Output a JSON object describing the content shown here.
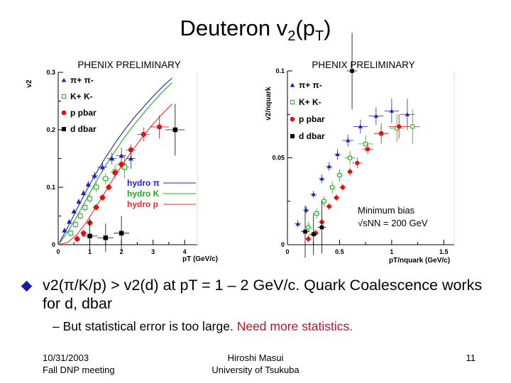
{
  "slide": {
    "title_main": "Deuteron v",
    "title_sub2": "2",
    "title_mid": "(p",
    "title_subT": "T",
    "title_end": ")",
    "bullet_text": "v2(π/K/p) > v2(d) at pT = 1 – 2 GeV/c. Quark Coalescence works for d, dbar",
    "sub_text_black": "– But statistical error is too large.",
    "sub_text_red": "Need more statistics.",
    "footer_left_line1": "10/31/2003",
    "footer_left_line2": "Fall DNP meeting",
    "footer_center_line1": "Hiroshi Masui",
    "footer_center_line2": "University of Tsukuba",
    "footer_right": "11"
  },
  "chart_data": [
    {
      "type": "scatter",
      "title": "PHENIX PRELIMINARY",
      "xlabel": "pT (GeV/c)",
      "ylabel": "v2",
      "xlim": [
        0,
        4.4
      ],
      "ylim": [
        0,
        0.3
      ],
      "xticks": [
        "0",
        "1",
        "2",
        "3",
        "4"
      ],
      "yticks": [
        "0",
        "0.1",
        "0.2",
        "0.3"
      ],
      "legend": [
        "π+ π-",
        "K+ K-",
        "p pbar",
        "d dbar"
      ],
      "colors": {
        "pi": "#1f1fc8",
        "k": "#1fa81f",
        "p": "#e01010",
        "d": "#000000"
      },
      "series": [
        {
          "name": "π+ π-",
          "marker": "triangle",
          "x": [
            0.2,
            0.35,
            0.5,
            0.65,
            0.8,
            0.95,
            1.15,
            1.4,
            1.7,
            2.0,
            2.3
          ],
          "y": [
            0.025,
            0.04,
            0.058,
            0.075,
            0.09,
            0.105,
            0.12,
            0.135,
            0.15,
            0.155,
            0.15
          ],
          "xerr": [
            0.05,
            0.05,
            0.05,
            0.05,
            0.05,
            0.05,
            0.1,
            0.15,
            0.15,
            0.15,
            0.15
          ],
          "yerr": [
            0.004,
            0.004,
            0.004,
            0.005,
            0.005,
            0.006,
            0.007,
            0.008,
            0.01,
            0.014,
            0.018
          ]
        },
        {
          "name": "K+ K-",
          "marker": "square-open",
          "x": [
            0.4,
            0.55,
            0.7,
            0.85,
            1.0,
            1.2,
            1.5,
            1.8,
            2.1
          ],
          "y": [
            0.02,
            0.035,
            0.05,
            0.065,
            0.08,
            0.1,
            0.115,
            0.127,
            0.135
          ],
          "xerr": [
            0.05,
            0.05,
            0.05,
            0.05,
            0.05,
            0.1,
            0.15,
            0.15,
            0.15
          ],
          "yerr": [
            0.006,
            0.006,
            0.006,
            0.007,
            0.007,
            0.008,
            0.01,
            0.012,
            0.02
          ]
        },
        {
          "name": "p pbar",
          "marker": "circle",
          "x": [
            0.6,
            0.8,
            1.0,
            1.2,
            1.4,
            1.6,
            1.8,
            2.0,
            2.3,
            2.7,
            3.2
          ],
          "y": [
            0.01,
            0.02,
            0.038,
            0.065,
            0.082,
            0.1,
            0.125,
            0.14,
            0.165,
            0.192,
            0.205
          ],
          "xerr": [
            0.1,
            0.1,
            0.1,
            0.1,
            0.1,
            0.1,
            0.1,
            0.15,
            0.15,
            0.2,
            0.3
          ],
          "yerr": [
            0.006,
            0.006,
            0.006,
            0.006,
            0.006,
            0.006,
            0.007,
            0.008,
            0.009,
            0.012,
            0.02
          ]
        },
        {
          "name": "d dbar",
          "marker": "square",
          "x": [
            1.0,
            1.5,
            2.0,
            3.7
          ],
          "y": [
            0.015,
            0.012,
            0.02,
            0.2
          ],
          "xerr": [
            0.25,
            0.25,
            0.25,
            0.3
          ],
          "yerr": [
            0.03,
            0.025,
            0.03,
            0.045
          ]
        }
      ],
      "curves": [
        {
          "name": "hydro π",
          "color": "#1f1fc8",
          "x": [
            0,
            0.3,
            0.6,
            0.9,
            1.2,
            1.5,
            1.8,
            2.1,
            2.4,
            2.7,
            3.0,
            3.3,
            3.6
          ],
          "y": [
            0,
            0.03,
            0.063,
            0.095,
            0.125,
            0.152,
            0.177,
            0.2,
            0.221,
            0.24,
            0.258,
            0.275,
            0.29
          ]
        },
        {
          "name": "hydro K",
          "color": "#1fa81f",
          "x": [
            0,
            0.3,
            0.6,
            0.9,
            1.2,
            1.5,
            1.8,
            2.1,
            2.4,
            2.7,
            3.0,
            3.3,
            3.6
          ],
          "y": [
            0,
            0.022,
            0.05,
            0.08,
            0.11,
            0.138,
            0.163,
            0.187,
            0.209,
            0.229,
            0.248,
            0.266,
            0.282
          ]
        },
        {
          "name": "hydro p",
          "color": "#e03030",
          "x": [
            0,
            0.3,
            0.6,
            0.9,
            1.2,
            1.5,
            1.8,
            2.1,
            2.4,
            2.7,
            3.0,
            3.3,
            3.6
          ],
          "y": [
            0,
            0.004,
            0.018,
            0.04,
            0.066,
            0.093,
            0.12,
            0.145,
            0.168,
            0.19,
            0.21,
            0.228,
            0.245
          ]
        }
      ]
    },
    {
      "type": "scatter",
      "title": "PHENIX PRELIMINARY",
      "xlabel": "pT/nquark (GeV/c)",
      "ylabel": "v2/nquark",
      "xlim": [
        0,
        1.6
      ],
      "ylim": [
        0,
        0.1
      ],
      "xticks": [
        "0",
        "0.5",
        "1",
        "1.5"
      ],
      "yticks": [
        "0",
        "0.05",
        "0.1"
      ],
      "legend": [
        "π+ π-",
        "K+ K-",
        "p pbar",
        "d dbar"
      ],
      "annotation_line1": "Minimum bias",
      "annotation_line2": "√sNN = 200 GeV",
      "series": [
        {
          "name": "π+ π-",
          "marker": "triangle",
          "x": [
            0.1,
            0.18,
            0.25,
            0.33,
            0.4,
            0.48,
            0.58,
            0.7,
            0.85,
            1.0,
            1.15
          ],
          "y": [
            0.012,
            0.02,
            0.029,
            0.038,
            0.045,
            0.052,
            0.06,
            0.068,
            0.074,
            0.077,
            0.075
          ],
          "xerr": [
            0.03,
            0.03,
            0.03,
            0.03,
            0.03,
            0.03,
            0.05,
            0.07,
            0.07,
            0.07,
            0.07
          ],
          "yerr": [
            0.002,
            0.002,
            0.002,
            0.0025,
            0.0025,
            0.003,
            0.0035,
            0.004,
            0.005,
            0.007,
            0.009
          ]
        },
        {
          "name": "K+ K-",
          "marker": "square-open",
          "x": [
            0.2,
            0.28,
            0.35,
            0.43,
            0.5,
            0.6,
            0.75,
            0.9,
            1.05,
            1.2
          ],
          "y": [
            0.01,
            0.018,
            0.025,
            0.033,
            0.04,
            0.05,
            0.058,
            0.064,
            0.067,
            0.068
          ],
          "xerr": [
            0.03,
            0.03,
            0.03,
            0.03,
            0.03,
            0.05,
            0.07,
            0.07,
            0.07,
            0.07
          ],
          "yerr": [
            0.003,
            0.003,
            0.003,
            0.0035,
            0.0035,
            0.004,
            0.005,
            0.006,
            0.008,
            0.01
          ]
        },
        {
          "name": "p pbar",
          "marker": "circle",
          "x": [
            0.2,
            0.27,
            0.33,
            0.4,
            0.47,
            0.53,
            0.6,
            0.67,
            0.77,
            0.9,
            1.07
          ],
          "y": [
            0.0033,
            0.0067,
            0.013,
            0.022,
            0.027,
            0.033,
            0.042,
            0.047,
            0.055,
            0.064,
            0.068
          ],
          "xerr": [
            0.03,
            0.03,
            0.03,
            0.03,
            0.03,
            0.03,
            0.03,
            0.05,
            0.05,
            0.07,
            0.1
          ],
          "yerr": [
            0.002,
            0.002,
            0.002,
            0.002,
            0.002,
            0.002,
            0.0025,
            0.003,
            0.003,
            0.004,
            0.007
          ]
        },
        {
          "name": "d dbar",
          "marker": "square",
          "x": [
            0.17,
            0.25,
            0.33,
            0.62
          ],
          "y": [
            0.0075,
            0.006,
            0.01,
            0.1
          ],
          "xerr": [
            0.04,
            0.04,
            0.04,
            0.05
          ],
          "yerr": [
            0.015,
            0.012,
            0.015,
            0.022
          ]
        }
      ]
    }
  ]
}
